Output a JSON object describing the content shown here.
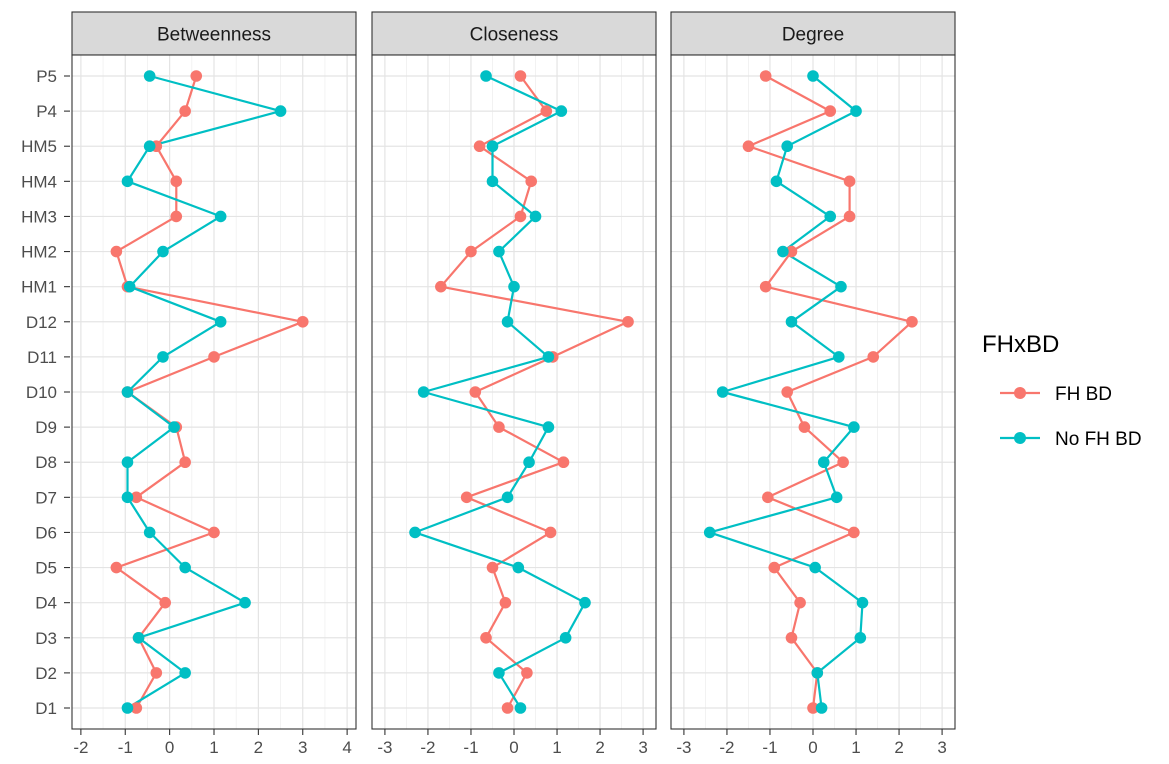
{
  "chart_data": {
    "type": "line",
    "y_categories": [
      "D1",
      "D2",
      "D3",
      "D4",
      "D5",
      "D6",
      "D7",
      "D8",
      "D9",
      "D10",
      "D11",
      "D12",
      "HM1",
      "HM2",
      "HM3",
      "HM4",
      "HM5",
      "P4",
      "P5"
    ],
    "legend": {
      "title": "FHxBD",
      "placement": "right",
      "entries": [
        "FH BD",
        "No FH BD"
      ]
    },
    "colors": {
      "FH BD": "#F8766D",
      "No FH BD": "#00BFC4"
    },
    "panels": [
      {
        "title": "Betweenness",
        "xlim": [
          -2.2,
          4.2
        ],
        "xticks": [
          "-2",
          "-1",
          "0",
          "1",
          "2",
          "3",
          "4"
        ],
        "xtick_values": [
          -2,
          -1,
          0,
          1,
          2,
          3,
          4
        ],
        "series": [
          {
            "name": "FH BD",
            "values": [
              -0.75,
              -0.3,
              -0.7,
              -0.1,
              -1.2,
              1.0,
              -0.75,
              0.35,
              0.15,
              -0.95,
              1.0,
              3.0,
              -0.95,
              -1.2,
              0.15,
              0.15,
              -0.3,
              0.35,
              0.6
            ]
          },
          {
            "name": "No FH BD",
            "values": [
              -0.95,
              0.35,
              -0.7,
              1.7,
              0.35,
              -0.45,
              -0.95,
              -0.95,
              0.1,
              -0.95,
              -0.15,
              1.15,
              -0.9,
              -0.15,
              1.15,
              -0.95,
              -0.45,
              2.5,
              -0.45
            ]
          }
        ]
      },
      {
        "title": "Closeness",
        "xlim": [
          -3.3,
          3.3
        ],
        "xticks": [
          "-3",
          "-2",
          "-1",
          "0",
          "1",
          "2",
          "3"
        ],
        "xtick_values": [
          -3,
          -2,
          -1,
          0,
          1,
          2,
          3
        ],
        "series": [
          {
            "name": "FH BD",
            "values": [
              -0.15,
              0.3,
              -0.65,
              -0.2,
              -0.5,
              0.85,
              -1.1,
              1.15,
              -0.35,
              -0.9,
              0.9,
              2.65,
              -1.7,
              -1.0,
              0.15,
              0.4,
              -0.8,
              0.75,
              0.15
            ]
          },
          {
            "name": "No FH BD",
            "values": [
              0.15,
              -0.35,
              1.2,
              1.65,
              0.1,
              -2.3,
              -0.15,
              0.35,
              0.8,
              -2.1,
              0.8,
              -0.15,
              0.0,
              -0.35,
              0.5,
              -0.5,
              -0.5,
              1.1,
              -0.65
            ]
          }
        ]
      },
      {
        "title": "Degree",
        "xlim": [
          -3.3,
          3.3
        ],
        "xticks": [
          "-3",
          "-2",
          "-1",
          "0",
          "1",
          "2",
          "3"
        ],
        "xtick_values": [
          -3,
          -2,
          -1,
          0,
          1,
          2,
          3
        ],
        "series": [
          {
            "name": "FH BD",
            "values": [
              0.0,
              0.1,
              -0.5,
              -0.3,
              -0.9,
              0.95,
              -1.05,
              0.7,
              -0.2,
              -0.6,
              1.4,
              2.3,
              -1.1,
              -0.5,
              0.85,
              0.85,
              -1.5,
              0.4,
              -1.1
            ]
          },
          {
            "name": "No FH BD",
            "values": [
              0.2,
              0.1,
              1.1,
              1.15,
              0.05,
              -2.4,
              0.55,
              0.25,
              0.95,
              -2.1,
              0.6,
              -0.5,
              0.65,
              -0.7,
              0.4,
              -0.85,
              -0.6,
              1.0,
              0.0
            ]
          }
        ]
      }
    ],
    "grid": true
  }
}
